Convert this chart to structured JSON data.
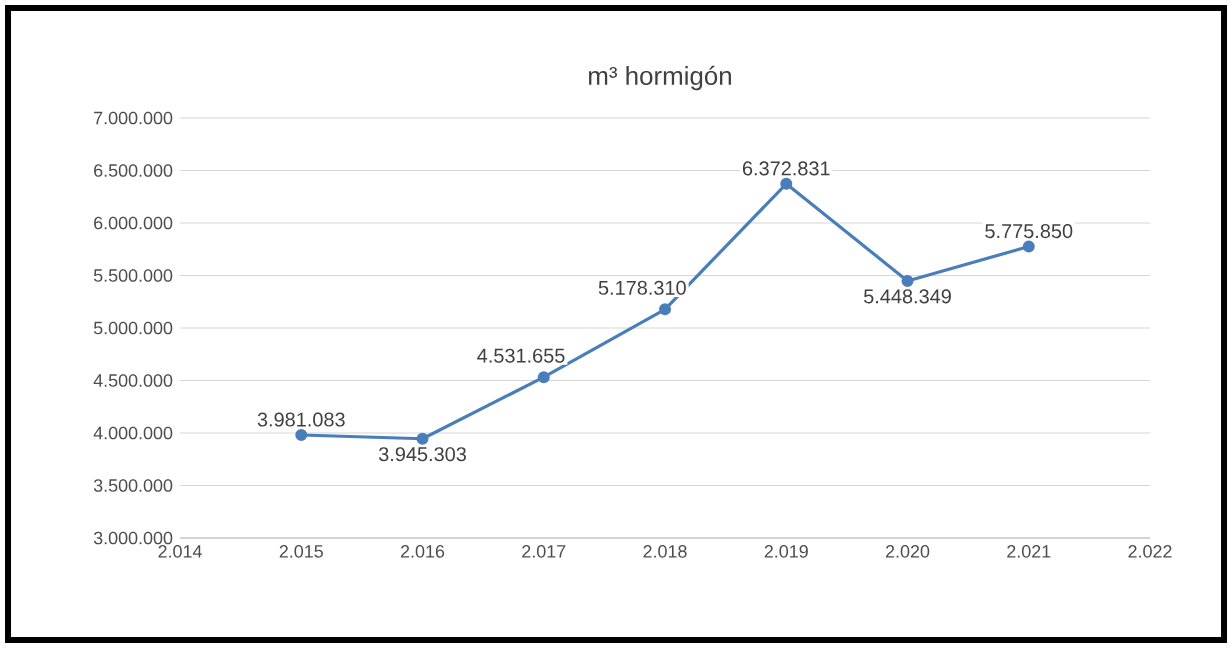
{
  "chart_data": {
    "type": "line",
    "title": "m³ hormigón",
    "x": [
      2015,
      2016,
      2017,
      2018,
      2019,
      2020,
      2021
    ],
    "series": [
      {
        "color": "#4a7ebb",
        "values": [
          3981083,
          3945303,
          4531655,
          5178310,
          6372831,
          5448349,
          5775850
        ],
        "value_labels": [
          "3.981.083",
          "3.945.303",
          "4.531.655",
          "5.178.310",
          "6.372.831",
          "5.448.349",
          "5.775.850"
        ]
      }
    ],
    "xlim": [
      2014,
      2022
    ],
    "xticks": [
      {
        "value": 2014,
        "label": "2.014"
      },
      {
        "value": 2015,
        "label": "2.015"
      },
      {
        "value": 2016,
        "label": "2.016"
      },
      {
        "value": 2017,
        "label": "2.017"
      },
      {
        "value": 2018,
        "label": "2.018"
      },
      {
        "value": 2019,
        "label": "2.019"
      },
      {
        "value": 2020,
        "label": "2.020"
      },
      {
        "value": 2021,
        "label": "2.021"
      },
      {
        "value": 2022,
        "label": "2.022"
      }
    ],
    "ylim": [
      3000000,
      7000000
    ],
    "yticks": [
      {
        "value": 3000000,
        "label": "3.000.000"
      },
      {
        "value": 3500000,
        "label": "3.500.000"
      },
      {
        "value": 4000000,
        "label": "4.000.000"
      },
      {
        "value": 4500000,
        "label": "4.500.000"
      },
      {
        "value": 5000000,
        "label": "5.000.000"
      },
      {
        "value": 5500000,
        "label": "5.500.000"
      },
      {
        "value": 6000000,
        "label": "6.000.000"
      },
      {
        "value": 6500000,
        "label": "6.500.000"
      },
      {
        "value": 7000000,
        "label": "7.000.000"
      }
    ],
    "grid": "y",
    "marker": "circle",
    "line_style": "solid"
  }
}
